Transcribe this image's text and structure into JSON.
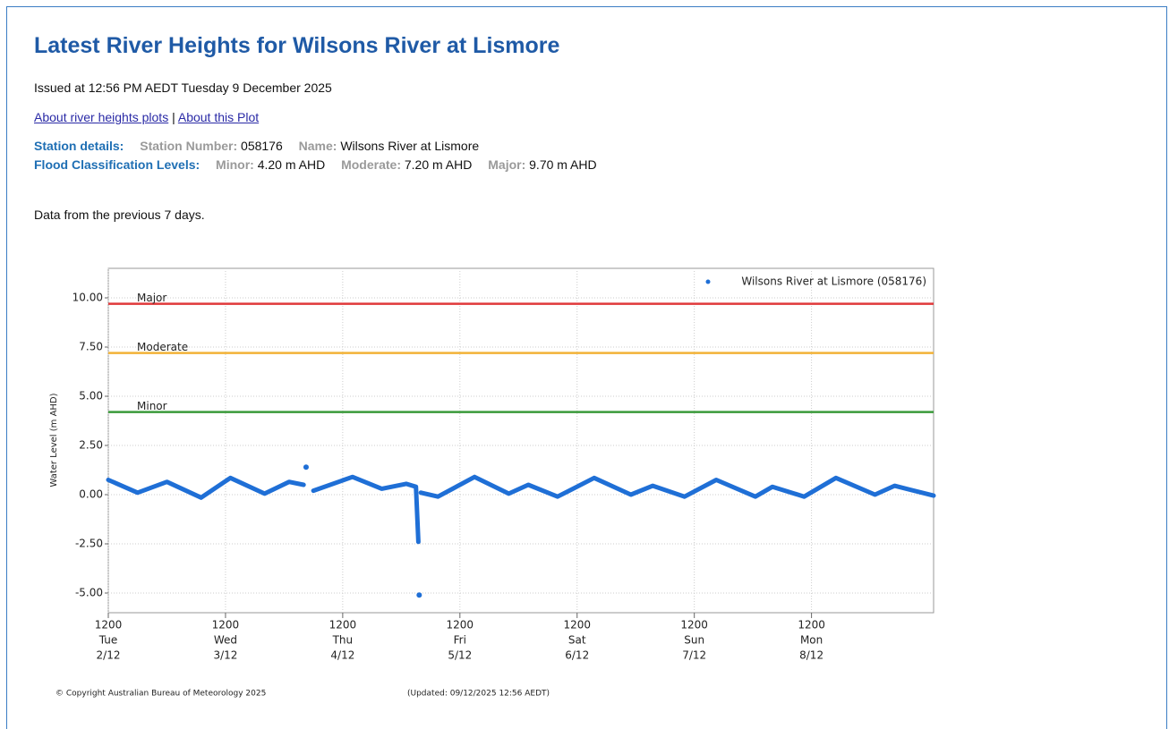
{
  "header": {
    "title": "Latest River Heights for Wilsons River at Lismore",
    "issued": "Issued at 12:56 PM AEDT Tuesday 9 December 2025",
    "links": [
      "About river heights plots",
      "About this Plot"
    ],
    "separator": "|"
  },
  "station": {
    "heading": "Station details:",
    "number_label": "Station Number:",
    "number": "058176",
    "name_label": "Name:",
    "name": "Wilsons River at Lismore"
  },
  "flood": {
    "heading": "Flood Classification Levels:",
    "levels": [
      {
        "label": "Minor:",
        "value": "4.20 m AHD"
      },
      {
        "label": "Moderate:",
        "value": "7.20 m AHD"
      },
      {
        "label": "Major:",
        "value": "9.70 m AHD"
      }
    ]
  },
  "note": "Data from the previous 7 days.",
  "footer": {
    "copyright": "© Copyright Australian Bureau of Meteorology 2025",
    "updated": "(Updated: 09/12/2025 12:56 AEDT)"
  },
  "chart_data": {
    "type": "line",
    "y_label": "Water Level (m AHD)",
    "legend": "top-right",
    "grid": true,
    "ylim": [
      -6,
      11.5
    ],
    "yticks": [
      {
        "value": 10,
        "label": "10.00"
      },
      {
        "value": 7.5,
        "label": "7.50"
      },
      {
        "value": 5,
        "label": "5.00"
      },
      {
        "value": 2.5,
        "label": "2.50"
      },
      {
        "value": 0,
        "label": "0.00"
      },
      {
        "value": -2.5,
        "label": "-2.50"
      },
      {
        "value": -5,
        "label": "-5.00"
      }
    ],
    "xlim": [
      "2/12 12:00",
      "9/12 13:00"
    ],
    "xticks": [
      {
        "value": "2/12 12:00",
        "label": [
          "1200",
          "Tue",
          "2/12"
        ]
      },
      {
        "value": "3/12 12:00",
        "label": [
          "1200",
          "Wed",
          "3/12"
        ]
      },
      {
        "value": "4/12 12:00",
        "label": [
          "1200",
          "Thu",
          "4/12"
        ]
      },
      {
        "value": "5/12 12:00",
        "label": [
          "1200",
          "Fri",
          "5/12"
        ]
      },
      {
        "value": "6/12 12:00",
        "label": [
          "1200",
          "Sat",
          "6/12"
        ]
      },
      {
        "value": "7/12 12:00",
        "label": [
          "1200",
          "Sun",
          "7/12"
        ]
      },
      {
        "value": "8/12 12:00",
        "label": [
          "1200",
          "Mon",
          "8/12"
        ]
      }
    ],
    "thresholds": [
      {
        "label": "Major",
        "value": 9.7,
        "color": "#e0383a"
      },
      {
        "label": "Moderate",
        "value": 7.2,
        "color": "#f2b237"
      },
      {
        "label": "Minor",
        "value": 4.2,
        "color": "#3a9a3a"
      }
    ],
    "x": [
      "2/12 12:00",
      "2/12 18:00",
      "3/12 00:00",
      "3/12 07:00",
      "3/12 13:00",
      "3/12 20:00",
      "4/12 01:00",
      "4/12 04:00",
      "4/12 04:15",
      "4/12 04:30",
      "4/12 04:45",
      "4/12 06:00",
      "4/12 14:00",
      "4/12 20:00",
      "5/12 01:00",
      "5/12 03:00",
      "5/12 03:30",
      "5/12 03:35",
      "5/12 03:40",
      "5/12 03:45",
      "5/12 04:00",
      "5/12 07:30",
      "5/12 15:00",
      "5/12 22:00",
      "6/12 02:00",
      "6/12 08:00",
      "6/12 15:30",
      "6/12 23:00",
      "7/12 03:30",
      "7/12 10:00",
      "7/12 16:30",
      "8/12 00:30",
      "8/12 04:00",
      "8/12 10:30",
      "8/12 17:00",
      "9/12 01:00",
      "9/12 05:00",
      "9/12 13:00"
    ],
    "series": [
      {
        "name": "Wilsons River at Lismore (058176)",
        "color": "#1f6fd6",
        "values": [
          0.75,
          0.1,
          0.65,
          -0.15,
          0.85,
          0.05,
          0.65,
          0.5,
          null,
          1.4,
          null,
          0.2,
          0.9,
          0.3,
          0.55,
          0.4,
          -2.4,
          null,
          -5.1,
          null,
          0.1,
          -0.1,
          0.9,
          0.05,
          0.5,
          -0.1,
          0.85,
          0.0,
          0.45,
          -0.1,
          0.75,
          -0.1,
          0.4,
          -0.1,
          0.85,
          0.0,
          0.45,
          -0.05
        ]
      }
    ]
  }
}
